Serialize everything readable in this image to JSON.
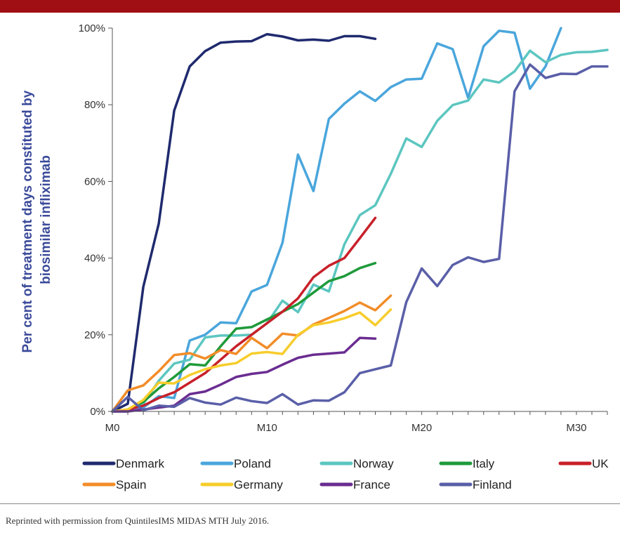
{
  "header": {
    "bar_color": "#a00f14"
  },
  "chart_data": {
    "type": "line",
    "ylabel_lines": [
      "Per cent of treatment days constituted by",
      "biosimilar infliximab"
    ],
    "xlabel": "",
    "xlim": [
      0,
      32
    ],
    "ylim": [
      0,
      100
    ],
    "x_ticks": [
      {
        "value": 0,
        "label": "M0"
      },
      {
        "value": 10,
        "label": "M10"
      },
      {
        "value": 20,
        "label": "M20"
      },
      {
        "value": 30,
        "label": "M30"
      }
    ],
    "y_ticks": [
      {
        "value": 0,
        "label": "0%"
      },
      {
        "value": 20,
        "label": "20%"
      },
      {
        "value": 40,
        "label": "40%"
      },
      {
        "value": 60,
        "label": "60%"
      },
      {
        "value": 80,
        "label": "80%"
      },
      {
        "value": 100,
        "label": "100%"
      }
    ],
    "grid": false,
    "legend_position": "bottom",
    "series": [
      {
        "name": "Denmark",
        "color": "#1f2a6e",
        "x": [
          0,
          1,
          2,
          3,
          4,
          5,
          6,
          7,
          8,
          9,
          10,
          11,
          12,
          13,
          14,
          15,
          16,
          17
        ],
        "y": [
          0,
          2,
          32.5,
          49,
          78.5,
          90,
          94,
          96.2,
          96.5,
          96.6,
          98.4,
          97.8,
          96.8,
          97,
          96.7,
          97.9,
          97.9,
          97.2
        ]
      },
      {
        "name": "Poland",
        "color": "#4aa6dc",
        "x": [
          0,
          1,
          2,
          3,
          4,
          5,
          6,
          7,
          8,
          9,
          10,
          11,
          12,
          13,
          14,
          15,
          16,
          17,
          18,
          19,
          20,
          21,
          22,
          23,
          24,
          25,
          26,
          27,
          28,
          29
        ],
        "y": [
          0,
          0,
          1,
          4,
          3.5,
          18.5,
          20,
          23.2,
          23,
          31.3,
          33,
          44,
          67,
          57.5,
          76.3,
          80.3,
          83.5,
          81,
          84.6,
          86.6,
          86.8,
          96,
          94.5,
          81.8,
          95.3,
          99.3,
          98.8,
          84.2,
          90,
          100
        ]
      },
      {
        "name": "Norway",
        "color": "#5cc6c0",
        "x": [
          0,
          1,
          2,
          3,
          4,
          5,
          6,
          7,
          8,
          9,
          10,
          11,
          12,
          13,
          14,
          15,
          16,
          17,
          18,
          19,
          20,
          21,
          22,
          23,
          24,
          25,
          26,
          27,
          28,
          29,
          30,
          31,
          32
        ],
        "y": [
          0,
          0,
          2,
          8,
          12.5,
          13.5,
          19.3,
          19.8,
          19.8,
          20,
          23,
          28.9,
          25.9,
          33.1,
          31.3,
          43.6,
          51.2,
          53.8,
          62,
          71.2,
          69,
          75.8,
          79.9,
          81.1,
          86.6,
          85.8,
          88.7,
          94.1,
          91.1,
          93,
          93.7,
          93.8,
          94.3
        ]
      },
      {
        "name": "Italy",
        "color": "#1f9a3a",
        "x": [
          0,
          1,
          2,
          3,
          4,
          5,
          6,
          7,
          8,
          9,
          10,
          11,
          12,
          13,
          14,
          15,
          16,
          17
        ],
        "y": [
          0,
          0.5,
          2.5,
          6,
          9,
          12.3,
          12,
          17,
          21.6,
          22,
          24,
          26,
          28,
          31,
          34,
          35.3,
          37.4,
          38.7
        ]
      },
      {
        "name": "UK",
        "color": "#c8202a",
        "x": [
          0,
          1,
          2,
          3,
          4,
          5,
          6,
          7,
          8,
          9,
          10,
          11,
          12,
          13,
          14,
          15,
          16,
          17
        ],
        "y": [
          0,
          0.5,
          1.5,
          3.5,
          5,
          7.5,
          10,
          13.5,
          17,
          20,
          23,
          26,
          29.5,
          35,
          38,
          40,
          45.2,
          50.5
        ]
      },
      {
        "name": "Spain",
        "color": "#f28c28",
        "x": [
          0,
          1,
          2,
          3,
          4,
          5,
          6,
          7,
          8,
          9,
          10,
          11,
          12,
          13,
          14,
          15,
          16,
          17,
          18
        ],
        "y": [
          0,
          5.5,
          6.8,
          10.5,
          14.7,
          15.2,
          13.8,
          16,
          15,
          19.2,
          16.5,
          20.3,
          19.8,
          22.7,
          24.4,
          26.2,
          28.4,
          26.4,
          30.2
        ]
      },
      {
        "name": "Germany",
        "color": "#f7cd2c",
        "x": [
          0,
          1,
          2,
          3,
          4,
          5,
          6,
          7,
          8,
          9,
          10,
          11,
          12,
          13,
          14,
          15,
          16,
          17,
          18
        ],
        "y": [
          0,
          0.5,
          3,
          7.5,
          7.3,
          9.5,
          11,
          12,
          12.6,
          15.1,
          15.5,
          15,
          20,
          22.5,
          23.2,
          24.3,
          25.8,
          22.5,
          26.6
        ]
      },
      {
        "name": "France",
        "color": "#6a2c91",
        "x": [
          0,
          1,
          2,
          3,
          4,
          5,
          6,
          7,
          8,
          9,
          10,
          11,
          12,
          13,
          14,
          15,
          16,
          17
        ],
        "y": [
          0,
          0,
          0.5,
          1,
          1.5,
          4.5,
          5.2,
          7,
          9,
          9.8,
          10.3,
          12.2,
          14,
          14.8,
          15.1,
          15.4,
          19.2,
          19
        ]
      },
      {
        "name": "Finland",
        "color": "#5a5fa8",
        "x": [
          0,
          1,
          2,
          3,
          4,
          5,
          6,
          7,
          8,
          9,
          10,
          11,
          12,
          13,
          14,
          15,
          16,
          17,
          18,
          19,
          20,
          21,
          22,
          23,
          24,
          25,
          26,
          27,
          28,
          29,
          30,
          31,
          32
        ],
        "y": [
          0,
          3.8,
          0.3,
          1.5,
          1.2,
          3.5,
          2.3,
          1.8,
          3.6,
          2.7,
          2.2,
          4.5,
          1.8,
          2.9,
          2.8,
          5,
          10,
          11,
          12,
          28.5,
          37.3,
          32.7,
          38.2,
          40.2,
          39,
          39.8,
          83.5,
          90.5,
          87,
          88.1,
          88,
          90,
          90
        ]
      }
    ]
  },
  "footnote": "Reprinted with permission from QuintilesIMS MIDAS MTH July 2016."
}
